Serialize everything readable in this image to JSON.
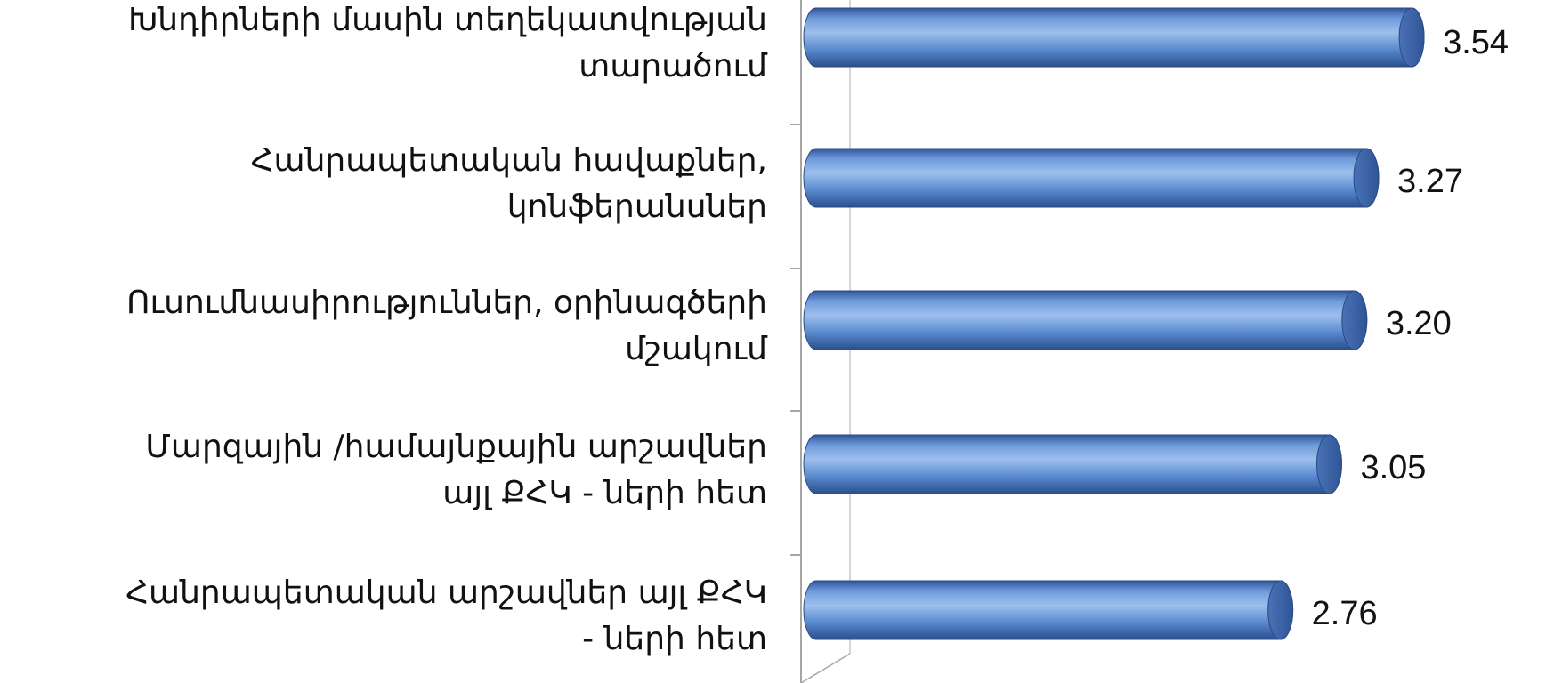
{
  "chart_data": {
    "type": "bar",
    "orientation": "horizontal",
    "categories": [
      [
        "Խնդիրների մասին տեղեկատվության",
        "տարածում"
      ],
      [
        "Հանրապետական  հավաքներ,",
        "կոնֆերանսներ"
      ],
      [
        "Ուսումնասիրություններ, օրինագծերի",
        "մշակում"
      ],
      [
        "Մարզային /համայնքային արշավներ",
        "այլ ՔՀԿ - ների հետ"
      ],
      [
        "Հանրապետական արշավներ այլ ՔՀԿ",
        "- ների հետ"
      ]
    ],
    "values": [
      3.54,
      3.27,
      3.2,
      3.05,
      2.76
    ],
    "value_labels": [
      "3.54",
      "3.27",
      "3.20",
      "3.05",
      "2.76"
    ],
    "bar_style": "3d-cylinder",
    "grid": false,
    "legend": "none",
    "colors": {
      "bar_light": "#8fb4e6",
      "bar_mid": "#5b8bd0",
      "bar_dark": "#2e5597",
      "bar_cap": "#3d64a8",
      "axis": "#a6a6a6"
    }
  }
}
